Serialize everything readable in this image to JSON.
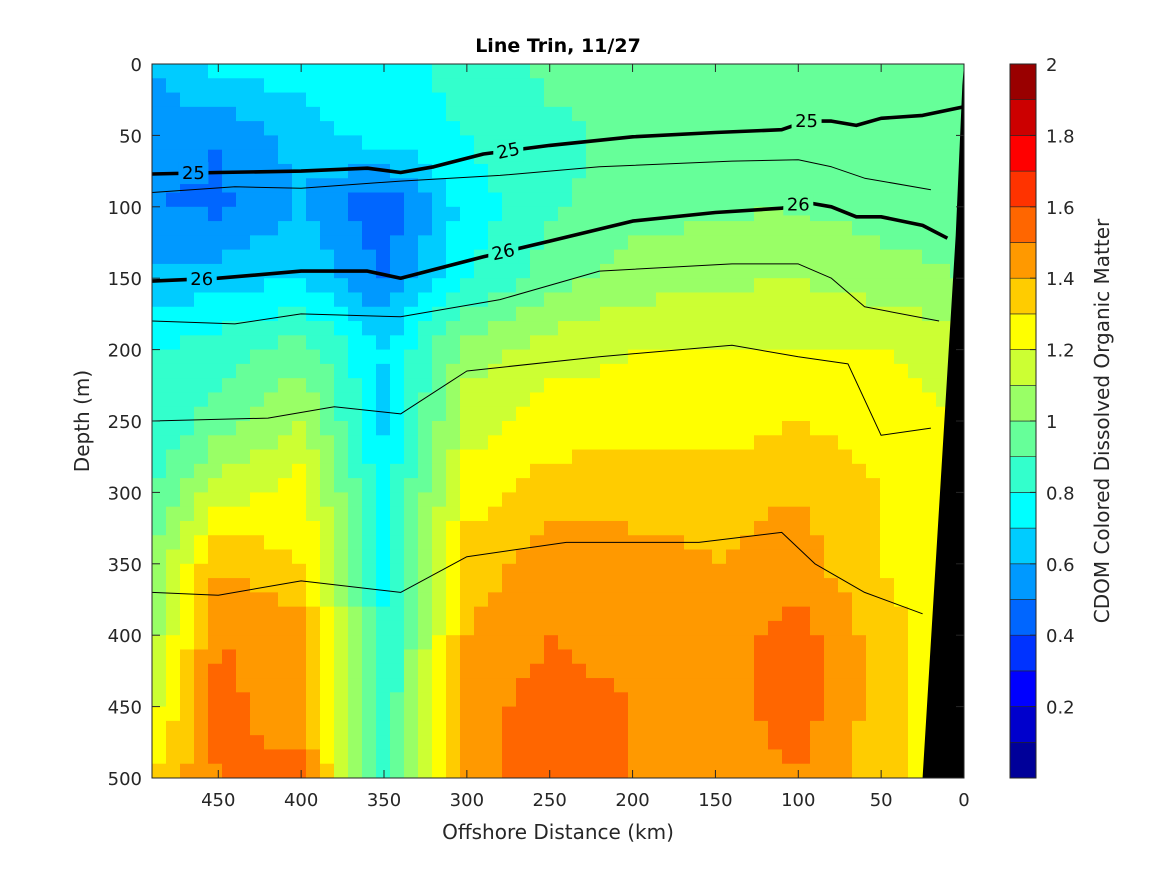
{
  "chart_data": {
    "type": "heatmap",
    "title": "Line Trin, 11/27",
    "xlabel": "Offshore Distance (km)",
    "ylabel": "Depth (m)",
    "colorbar_label": "CDOM Colored Dissolved Organic Matter",
    "xlim": [
      490,
      0
    ],
    "ylim": [
      500,
      0
    ],
    "x_direction": "reversed",
    "y_direction": "reversed (depth increases downward)",
    "x_ticks": [
      450,
      400,
      350,
      300,
      250,
      200,
      150,
      100,
      50,
      0
    ],
    "y_ticks": [
      0,
      50,
      100,
      150,
      200,
      250,
      300,
      350,
      400,
      450,
      500
    ],
    "colorbar_ticks": [
      0.2,
      0.4,
      0.6,
      0.8,
      1,
      1.2,
      1.4,
      1.6,
      1.8,
      2
    ],
    "colorbar_range": [
      0,
      2
    ],
    "colormap": "jet",
    "colorbar_levels": 20,
    "grid": false,
    "legend": "none",
    "cdom_field": {
      "x_km": [
        490,
        450,
        400,
        350,
        300,
        250,
        200,
        150,
        100,
        50,
        0
      ],
      "depth_m": [
        0,
        50,
        100,
        150,
        200,
        250,
        300,
        350,
        400,
        450,
        500
      ],
      "values": [
        [
          0.6,
          0.75,
          0.75,
          0.75,
          0.85,
          0.92,
          0.95,
          0.95,
          0.95,
          0.95,
          0.95
        ],
        [
          0.55,
          0.5,
          0.65,
          0.75,
          0.8,
          0.88,
          0.92,
          0.95,
          0.97,
          0.95,
          0.95
        ],
        [
          0.5,
          0.48,
          0.6,
          0.4,
          0.75,
          0.88,
          0.95,
          0.98,
          1.0,
          0.95,
          0.95
        ],
        [
          0.62,
          0.65,
          0.7,
          0.5,
          0.8,
          0.95,
          1.05,
          1.08,
          1.1,
          1.05,
          1.0
        ],
        [
          0.8,
          0.85,
          0.95,
          0.7,
          1.05,
          1.15,
          1.2,
          1.2,
          1.2,
          1.2,
          1.15
        ],
        [
          0.8,
          0.95,
          1.1,
          0.68,
          1.15,
          1.25,
          1.25,
          1.25,
          1.3,
          1.25,
          1.2
        ],
        [
          0.9,
          1.15,
          1.25,
          0.75,
          1.25,
          1.35,
          1.35,
          1.35,
          1.4,
          1.3,
          1.2
        ],
        [
          1.0,
          1.4,
          1.3,
          0.78,
          1.35,
          1.45,
          1.45,
          1.4,
          1.45,
          1.3,
          1.2
        ],
        [
          1.05,
          1.5,
          1.45,
          0.8,
          1.4,
          1.5,
          1.45,
          1.45,
          1.55,
          1.35,
          1.2
        ],
        [
          1.15,
          1.55,
          1.4,
          0.8,
          1.45,
          1.55,
          1.5,
          1.45,
          1.55,
          1.35,
          1.2
        ],
        [
          1.3,
          1.5,
          1.55,
          0.82,
          1.5,
          1.5,
          1.5,
          1.45,
          1.5,
          1.35,
          1.2
        ]
      ]
    },
    "density_contours": [
      {
        "label": "25",
        "bold": true,
        "x_km": [
          490,
          450,
          400,
          360,
          340,
          320,
          290,
          250,
          200,
          150,
          110,
          95,
          80,
          65,
          50,
          25,
          0
        ],
        "depth_m": [
          77,
          76,
          75,
          73,
          76,
          72,
          63,
          57,
          51,
          48,
          46,
          40,
          40,
          43,
          38,
          36,
          30
        ]
      },
      {
        "label": "26",
        "bold": true,
        "x_km": [
          490,
          450,
          400,
          360,
          340,
          320,
          290,
          250,
          200,
          150,
          110,
          95,
          80,
          65,
          50,
          25,
          10
        ],
        "depth_m": [
          152,
          150,
          145,
          145,
          150,
          144,
          135,
          124,
          110,
          104,
          101,
          97,
          100,
          107,
          107,
          113,
          122
        ]
      },
      {
        "label": "",
        "bold": false,
        "x_km": [
          490,
          440,
          400,
          340,
          280,
          220,
          140,
          100,
          80,
          60,
          20
        ],
        "depth_m": [
          90,
          86,
          87,
          82,
          78,
          72,
          68,
          67,
          72,
          80,
          88
        ]
      },
      {
        "label": "",
        "bold": false,
        "x_km": [
          490,
          440,
          400,
          340,
          280,
          220,
          140,
          100,
          80,
          60,
          15
        ],
        "depth_m": [
          180,
          182,
          175,
          177,
          165,
          145,
          140,
          140,
          150,
          170,
          180
        ]
      },
      {
        "label": "",
        "bold": false,
        "x_km": [
          490,
          420,
          380,
          340,
          300,
          220,
          140,
          100,
          70,
          50,
          20
        ],
        "depth_m": [
          250,
          248,
          240,
          245,
          215,
          205,
          197,
          205,
          210,
          260,
          255
        ]
      },
      {
        "label": "",
        "bold": false,
        "x_km": [
          490,
          450,
          400,
          340,
          300,
          240,
          160,
          110,
          90,
          60,
          25
        ],
        "depth_m": [
          370,
          372,
          362,
          370,
          345,
          335,
          335,
          328,
          350,
          370,
          385
        ]
      }
    ],
    "bottom_topography": "black wedge from x=0 to ~25 km, rising from 500 m at ~25 km to ~0 m at 0 km"
  }
}
